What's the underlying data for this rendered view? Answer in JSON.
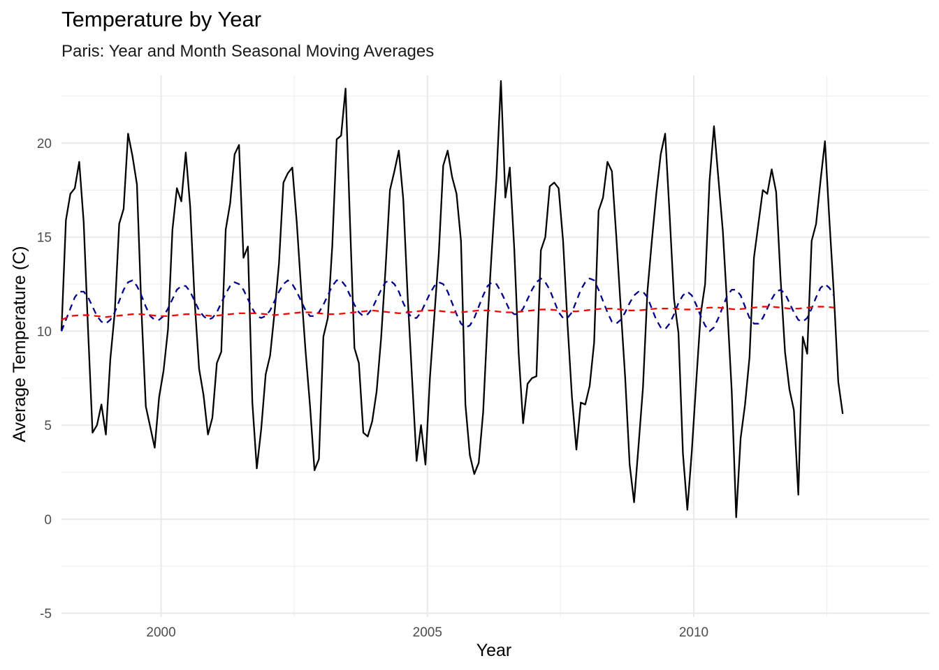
{
  "chart_data": {
    "type": "line",
    "title": "Temperature by Year",
    "subtitle": "Paris: Year and Month Seasonal Moving Averages",
    "xlabel": "Year",
    "ylabel": "Average Temperature (C)",
    "xlim": [
      1998.13,
      2014.42
    ],
    "ylim": [
      -5.2,
      23.6
    ],
    "x_ticks": [
      2000,
      2005,
      2010
    ],
    "y_ticks": [
      -5,
      0,
      5,
      10,
      15,
      20
    ],
    "grid": true,
    "legend": "none",
    "series": [
      {
        "color": "#000000",
        "dash": "solid",
        "x_start": 1998.13,
        "x_step": 0.08333,
        "values": [
          10.0,
          15.9,
          17.3,
          17.6,
          19.0,
          15.8,
          10.0,
          4.6,
          5.0,
          6.1,
          4.5,
          8.5,
          11.0,
          15.7,
          16.5,
          20.5,
          19.3,
          17.8,
          11.2,
          6.0,
          4.9,
          3.8,
          6.5,
          7.9,
          10.1,
          15.4,
          17.6,
          16.9,
          19.5,
          16.6,
          11.6,
          8.0,
          6.6,
          4.5,
          5.4,
          8.3,
          8.9,
          15.4,
          16.8,
          19.4,
          19.9,
          13.9,
          14.5,
          6.2,
          2.7,
          4.8,
          7.7,
          8.7,
          11.0,
          13.6,
          17.9,
          18.4,
          18.7,
          15.8,
          12.2,
          8.9,
          6.0,
          2.6,
          3.2,
          9.7,
          10.7,
          14.5,
          20.2,
          20.4,
          22.9,
          15.8,
          9.1,
          8.3,
          4.6,
          4.4,
          5.2,
          6.8,
          9.6,
          13.3,
          17.5,
          18.5,
          19.6,
          17.0,
          11.8,
          7.4,
          3.1,
          5.0,
          2.9,
          7.5,
          10.8,
          14.1,
          18.8,
          19.6,
          18.2,
          17.3,
          14.8,
          6.1,
          3.4,
          2.4,
          3.0,
          5.7,
          10.6,
          14.5,
          18.2,
          23.3,
          17.1,
          18.7,
          14.4,
          8.8,
          5.1,
          7.2,
          7.5,
          7.6,
          14.3,
          15.0,
          17.7,
          17.9,
          17.6,
          14.8,
          10.4,
          6.5,
          3.7,
          6.2,
          6.1,
          7.1,
          9.4,
          16.4,
          17.1,
          19.0,
          18.5,
          15.0,
          11.2,
          7.5,
          2.9,
          0.9,
          3.9,
          7.0,
          12.1,
          14.8,
          17.3,
          19.4,
          20.5,
          16.2,
          11.7,
          9.9,
          3.5,
          0.5,
          3.6,
          7.3,
          10.9,
          12.5,
          18.0,
          20.9,
          18.1,
          15.3,
          11.2,
          6.8,
          0.1,
          4.3,
          6.1,
          8.6,
          13.9,
          15.7,
          17.5,
          17.3,
          18.6,
          17.4,
          12.8,
          8.9,
          6.9,
          5.8,
          1.3,
          9.7,
          8.8,
          14.8,
          15.7,
          18.0,
          20.1,
          15.9,
          12.0,
          7.3,
          5.6
        ]
      },
      {
        "color": "#00008b",
        "dash": "dashed",
        "x_start": 1998.13,
        "x_step": 0.08333,
        "values": [
          10.0,
          10.6,
          11.2,
          11.8,
          12.1,
          12.1,
          11.8,
          11.3,
          10.8,
          10.5,
          10.4,
          10.6,
          11.0,
          11.6,
          12.2,
          12.6,
          12.7,
          12.4,
          11.9,
          11.3,
          10.8,
          10.6,
          10.6,
          10.8,
          11.2,
          11.7,
          12.2,
          12.4,
          12.4,
          12.1,
          11.6,
          11.1,
          10.8,
          10.6,
          10.7,
          11.0,
          11.5,
          12.0,
          12.4,
          12.6,
          12.5,
          12.2,
          11.7,
          11.2,
          10.8,
          10.7,
          10.8,
          11.1,
          11.6,
          12.1,
          12.5,
          12.7,
          12.5,
          12.1,
          11.6,
          11.1,
          10.8,
          10.8,
          11.0,
          11.4,
          11.9,
          12.4,
          12.7,
          12.7,
          12.4,
          11.9,
          11.4,
          11.0,
          10.8,
          10.9,
          11.2,
          11.7,
          12.2,
          12.6,
          12.7,
          12.5,
          12.1,
          11.5,
          11.0,
          10.7,
          10.7,
          11.0,
          11.5,
          12.0,
          12.4,
          12.6,
          12.5,
          12.1,
          11.5,
          10.9,
          10.4,
          10.2,
          10.3,
          10.7,
          11.3,
          11.9,
          12.4,
          12.6,
          12.5,
          12.1,
          11.6,
          11.1,
          10.9,
          10.9,
          11.2,
          11.7,
          12.2,
          12.6,
          12.8,
          12.6,
          12.2,
          11.6,
          11.0,
          10.7,
          10.7,
          11.0,
          11.6,
          12.2,
          12.6,
          12.8,
          12.7,
          12.2,
          11.6,
          11.0,
          10.5,
          10.4,
          10.6,
          11.0,
          11.5,
          11.9,
          12.1,
          12.1,
          11.8,
          11.2,
          10.6,
          10.2,
          10.1,
          10.4,
          10.9,
          11.5,
          11.9,
          12.1,
          11.9,
          11.4,
          10.8,
          10.3,
          10.0,
          10.2,
          10.7,
          11.3,
          11.9,
          12.2,
          12.2,
          11.9,
          11.3,
          10.7,
          10.4,
          10.4,
          10.7,
          11.2,
          11.7,
          12.1,
          12.2,
          12.0,
          11.5,
          11.0,
          10.6,
          10.5,
          10.7,
          11.2,
          11.8,
          12.3,
          12.5,
          12.3,
          11.9
        ]
      },
      {
        "color": "#ff0000",
        "dash": "dashed",
        "x_start": 1998.13,
        "x_step": 0.1667,
        "values": [
          10.6,
          10.8,
          10.85,
          10.85,
          10.8,
          10.75,
          10.8,
          10.85,
          10.9,
          10.9,
          10.85,
          10.8,
          10.8,
          10.85,
          10.9,
          10.9,
          10.85,
          10.8,
          10.85,
          10.9,
          10.95,
          10.95,
          10.95,
          10.9,
          10.85,
          10.9,
          10.95,
          11.0,
          11.0,
          10.95,
          10.9,
          10.9,
          10.95,
          11.0,
          11.05,
          11.1,
          11.05,
          11.0,
          10.95,
          11.0,
          11.05,
          11.1,
          11.1,
          11.05,
          11.0,
          11.0,
          11.05,
          11.1,
          11.1,
          11.05,
          11.0,
          11.0,
          11.05,
          11.1,
          11.15,
          11.15,
          11.1,
          11.05,
          11.05,
          11.1,
          11.15,
          11.2,
          11.2,
          11.15,
          11.1,
          11.1,
          11.15,
          11.2,
          11.2,
          11.2,
          11.15,
          11.15,
          11.2,
          11.25,
          11.25,
          11.2,
          11.15,
          11.2,
          11.25,
          11.3,
          11.3,
          11.25,
          11.2,
          11.2,
          11.25,
          11.3,
          11.3,
          11.25
        ]
      }
    ]
  }
}
